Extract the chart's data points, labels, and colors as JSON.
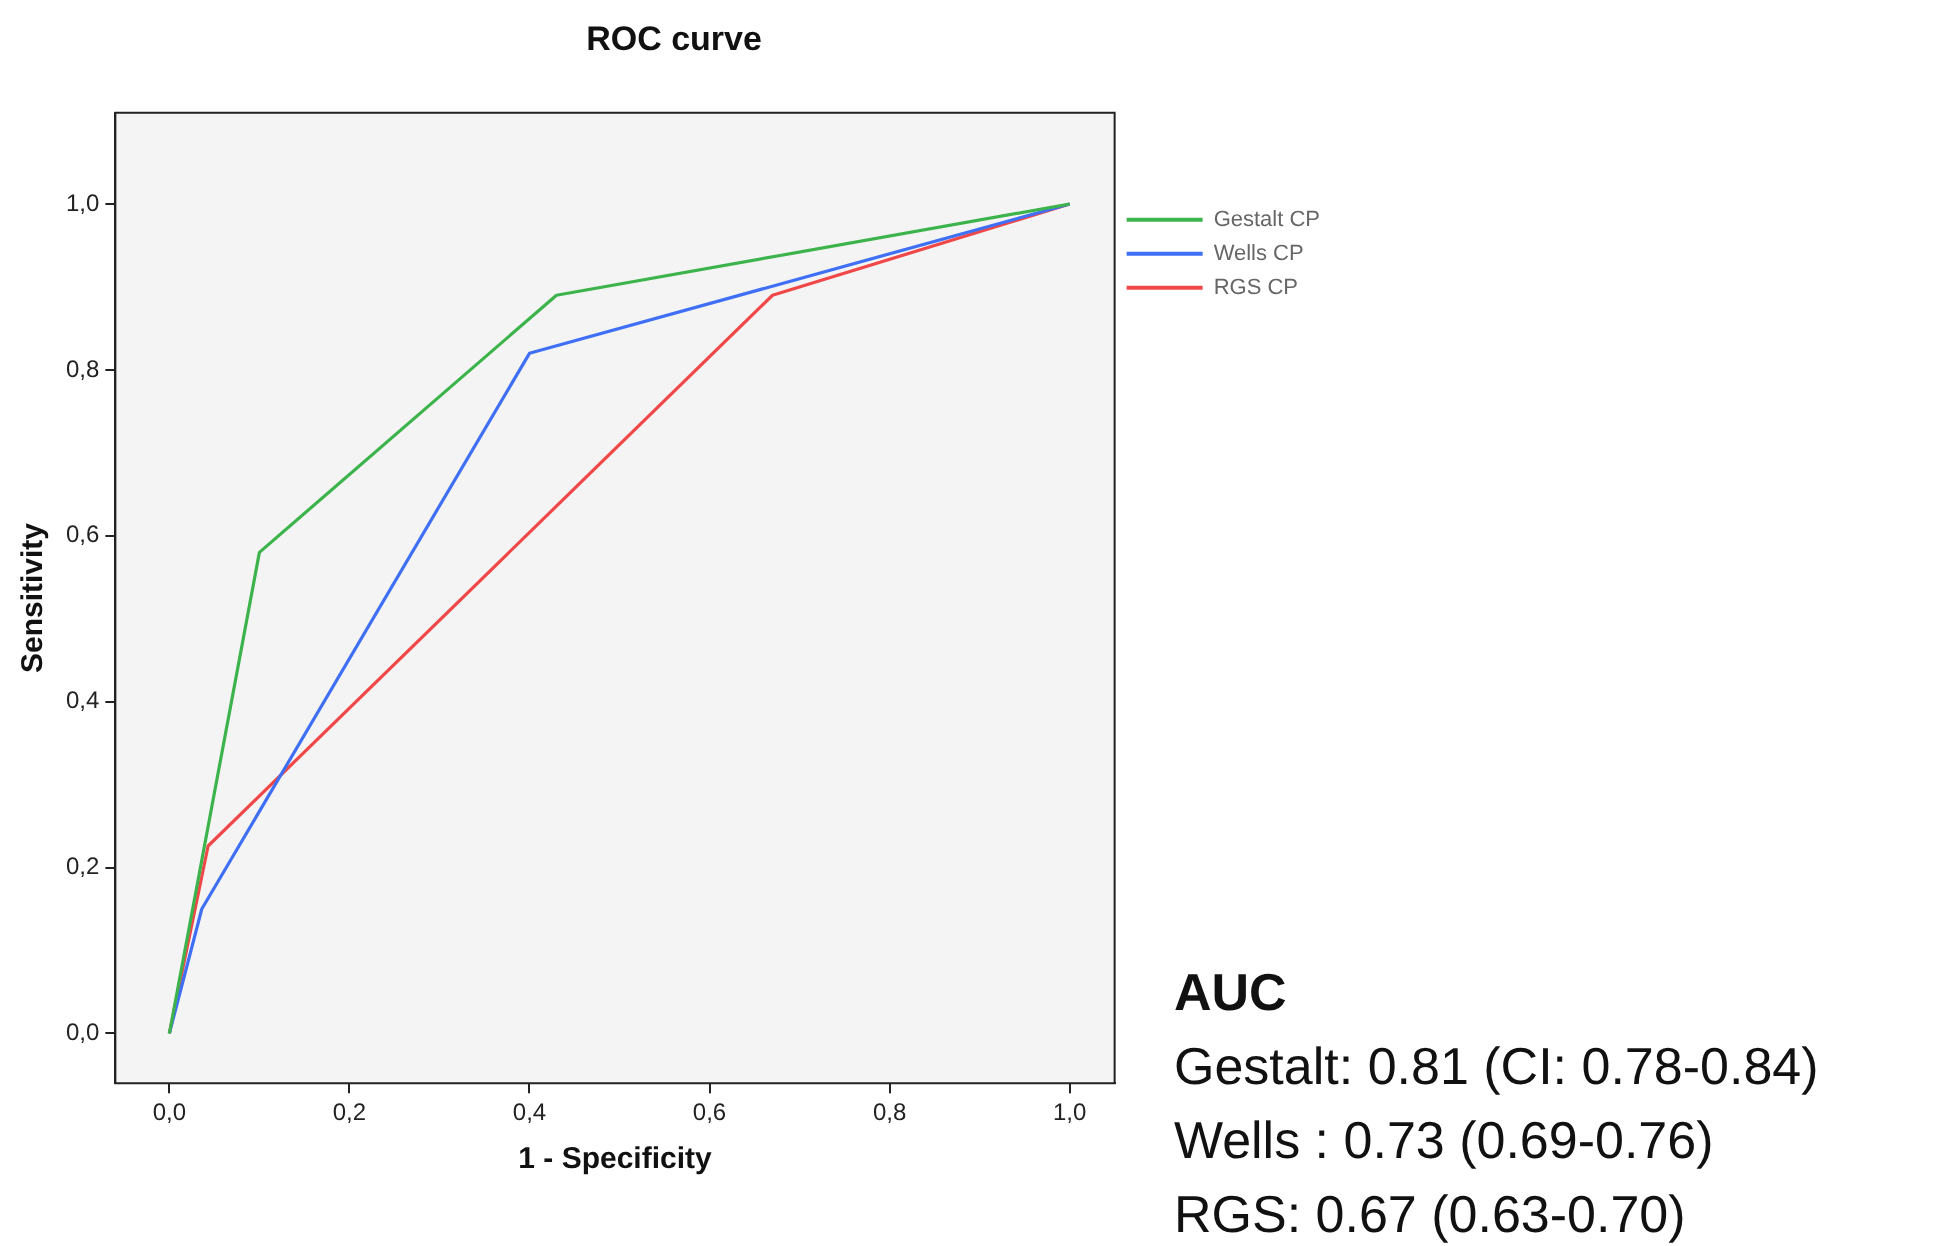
{
  "chart_data": {
    "type": "line",
    "title": "ROC curve",
    "xlabel": "1 - Specificity",
    "ylabel": "Sensitivity",
    "xlim": [
      -0.06,
      1.05
    ],
    "ylim": [
      -0.06,
      1.11
    ],
    "xticks": [
      {
        "value": 0,
        "label": "0,0"
      },
      {
        "value": 0.2,
        "label": "0,2"
      },
      {
        "value": 0.4,
        "label": "0,4"
      },
      {
        "value": 0.6,
        "label": "0,6"
      },
      {
        "value": 0.8,
        "label": "0,8"
      },
      {
        "value": 1,
        "label": "1,0"
      }
    ],
    "yticks": [
      {
        "value": 0,
        "label": "0,0"
      },
      {
        "value": 0.2,
        "label": "0,2"
      },
      {
        "value": 0.4,
        "label": "0,4"
      },
      {
        "value": 0.6,
        "label": "0,6"
      },
      {
        "value": 0.8,
        "label": "0,8"
      },
      {
        "value": 1,
        "label": "1,0"
      }
    ],
    "series": [
      {
        "name": "Gestalt CP",
        "color": "#3cb44b",
        "x": [
          0,
          0.1,
          0.43,
          1
        ],
        "values": [
          0,
          0.58,
          0.89,
          1
        ]
      },
      {
        "name": "Wells CP",
        "color": "#3f6ff5",
        "x": [
          0,
          0.036,
          0.4,
          1
        ],
        "values": [
          0,
          0.15,
          0.82,
          1
        ]
      },
      {
        "name": "RGS CP",
        "color": "#f04848",
        "x": [
          0,
          0.043,
          0.67,
          1
        ],
        "values": [
          0,
          0.226,
          0.89,
          1
        ]
      }
    ],
    "legend": "right",
    "marker": "none",
    "line_style": "solid",
    "annotations": [
      "AUC",
      "Gestalt: 0.81 (CI: 0.78-0.84)",
      "Wells : 0.73 (0.69-0.76)",
      "RGS: 0.67 (0.63-0.70)"
    ]
  }
}
